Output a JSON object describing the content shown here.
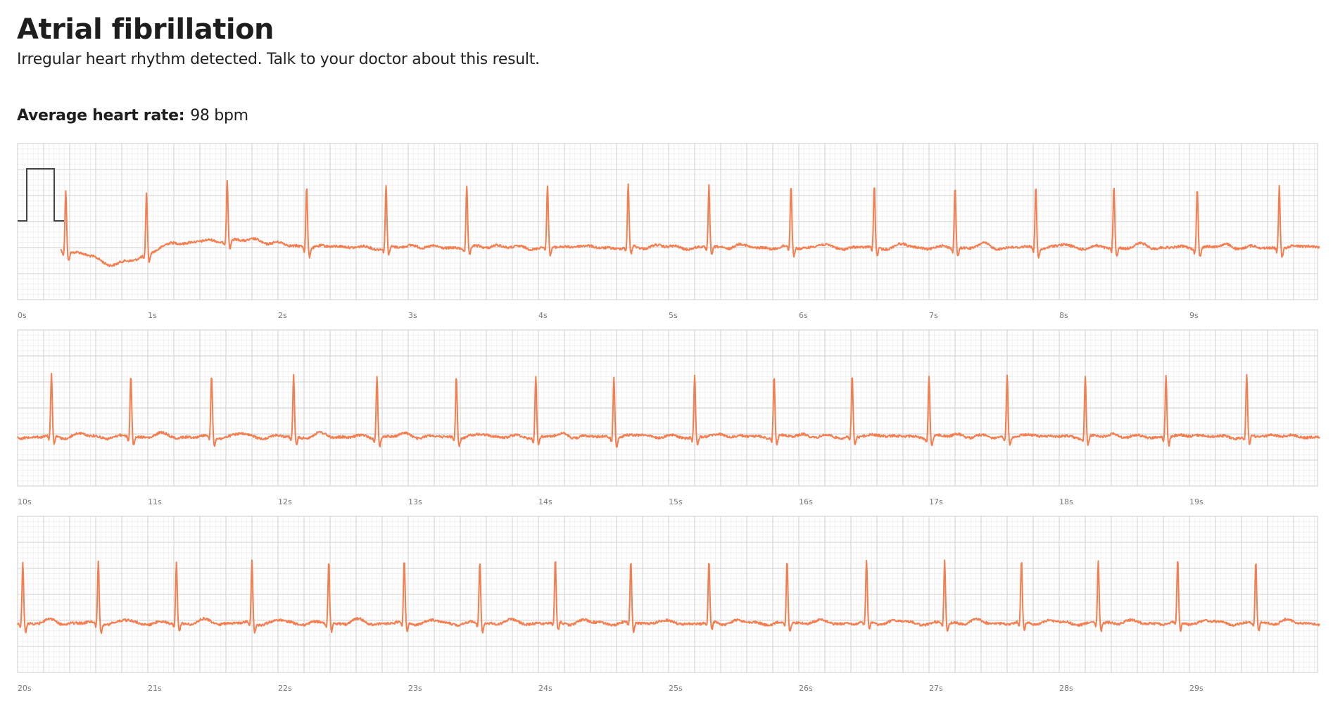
{
  "header": {
    "title": "Atrial fibrillation",
    "subtitle": "Irregular heart rhythm detected. Talk to your doctor about this result."
  },
  "summary": {
    "label": "Average heart rate:",
    "value": "98 bpm"
  },
  "colors": {
    "trace": "#f47e50",
    "grid_major": "#cfcfcf",
    "grid_minor": "#eaeaea",
    "calibration": "#444444"
  },
  "chart_data": {
    "type": "line",
    "title": "",
    "xlabel": "",
    "ylabel": "",
    "x_unit": "s",
    "total_duration_s": 30,
    "strip_duration_s": 10,
    "grid": true,
    "calibration_pulse": true,
    "strips": [
      {
        "start_s": 0,
        "end_s": 10,
        "tick_labels": [
          "0s",
          "1s",
          "2s",
          "3s",
          "4s",
          "5s",
          "6s",
          "7s",
          "8s",
          "9s"
        ],
        "r_peaks_s": [
          0.37,
          0.99,
          1.61,
          2.22,
          2.83,
          3.45,
          4.07,
          4.69,
          5.31,
          5.94,
          6.58,
          7.2,
          7.82,
          8.42,
          9.06,
          9.69
        ]
      },
      {
        "start_s": 10,
        "end_s": 20,
        "tick_labels": [
          "10s",
          "11s",
          "12s",
          "13s",
          "14s",
          "15s",
          "16s",
          "17s",
          "18s",
          "19s"
        ],
        "r_peaks_s": [
          10.26,
          10.87,
          11.49,
          12.12,
          12.76,
          13.37,
          13.98,
          14.58,
          15.2,
          15.81,
          16.41,
          17.0,
          17.6,
          18.2,
          18.82,
          19.44
        ]
      },
      {
        "start_s": 20,
        "end_s": 30,
        "tick_labels": [
          "20s",
          "21s",
          "22s",
          "23s",
          "24s",
          "25s",
          "26s",
          "27s",
          "28s",
          "29s"
        ],
        "r_peaks_s": [
          20.04,
          20.62,
          21.22,
          21.8,
          22.39,
          22.97,
          23.55,
          24.13,
          24.71,
          25.31,
          25.91,
          26.52,
          27.12,
          27.71,
          28.3,
          28.91,
          29.51
        ]
      }
    ]
  }
}
